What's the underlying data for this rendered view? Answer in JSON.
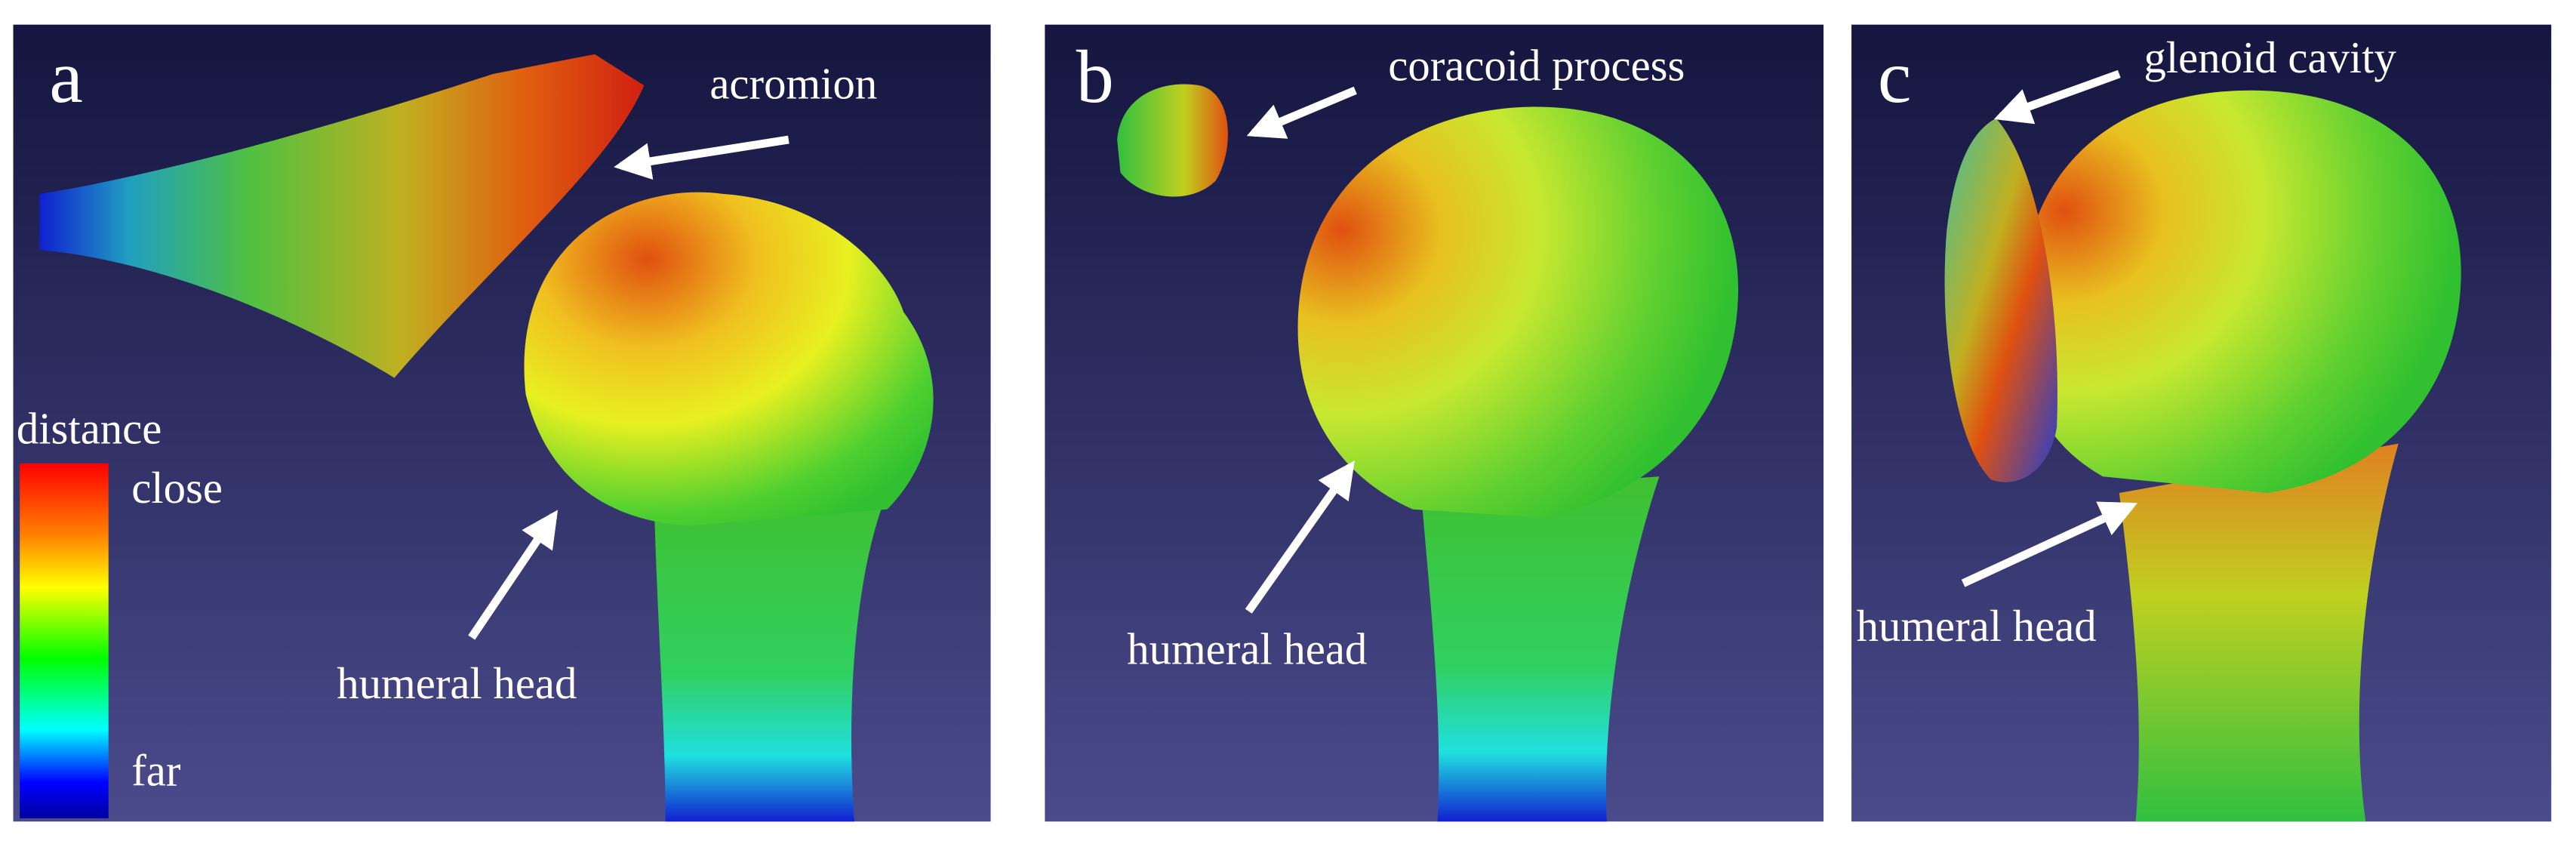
{
  "panels": [
    {
      "label": "a",
      "annotations": [
        "acromion",
        "humeral head"
      ]
    },
    {
      "label": "b",
      "annotations": [
        "coracoid process",
        "humeral head"
      ]
    },
    {
      "label": "c",
      "annotations": [
        "glenoid cavity",
        "humeral head"
      ]
    }
  ],
  "legend": {
    "title": "distance",
    "high": "close",
    "low": "far"
  }
}
